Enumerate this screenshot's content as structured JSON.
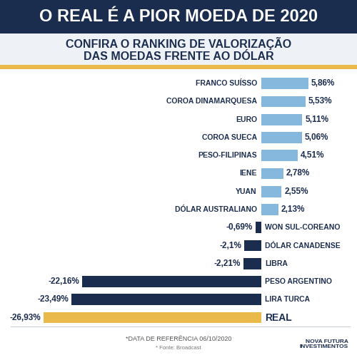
{
  "chart_data": {
    "type": "bar",
    "orientation": "horizontal",
    "title": "O REAL É A PIOR MOEDA DE 2020",
    "subtitle": "CONFIRA O RANKING DE VALORIZAÇÃO\nDAS MOEDAS FRENTE AO DÓLAR",
    "categories": [
      "FRANCO SUÍSSO",
      "COROA DINAMARQUESA",
      "EURO",
      "COROA SUECA",
      "PESO-FILIPINAS",
      "IENE",
      "YUAN",
      "DÓLAR AUSTRALIANO",
      "WON SUL-COREANO",
      "DÓLAR CANADENSE",
      "LIBRA",
      "PESO ARGENTINO",
      "LIRA TURCA",
      "REAL"
    ],
    "values": [
      5.86,
      5.53,
      5.11,
      5.06,
      4.51,
      2.78,
      2.55,
      2.13,
      -0.69,
      -2.1,
      -2.21,
      -22.16,
      -23.49,
      -26.93
    ],
    "value_labels": [
      "5,86%",
      "5,53%",
      "5,11%",
      "5,06%",
      "4,51%",
      "2,78%",
      "2,55%",
      "2,13%",
      "-0,69%",
      "-2,1%",
      "-2,21%",
      "-22,16%",
      "-23,49%",
      "-26,93%"
    ],
    "colors": [
      "#86b7dc",
      "#86b7dc",
      "#86b7dc",
      "#86b7dc",
      "#86b7dc",
      "#86b7dc",
      "#86b7dc",
      "#86b7dc",
      "#1b2d4f",
      "#1b2d4f",
      "#1b2d4f",
      "#1b2d4f",
      "#1b2d4f",
      "#e9b949"
    ],
    "data_labels": true,
    "tick_labels": false,
    "grid": false,
    "xlim": [
      -31,
      11
    ],
    "annotations": [
      "*DATA DE REFERÊNCIA 06/10/2020",
      "* Fonte: Broadcast",
      "NOVA FUTURA\nINVESTIMENTOS"
    ]
  }
}
